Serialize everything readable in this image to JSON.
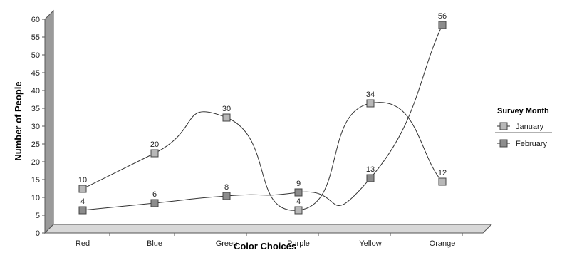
{
  "chart_data": {
    "type": "line",
    "title": "",
    "xlabel": "Color Choices",
    "ylabel": "Number of People",
    "categories": [
      "Red",
      "Blue",
      "Green",
      "Purple",
      "Yellow",
      "Orange"
    ],
    "ylim": [
      0,
      60
    ],
    "yticks": [
      0,
      5,
      10,
      15,
      20,
      25,
      30,
      35,
      40,
      45,
      50,
      55,
      60
    ],
    "grid": false,
    "legend": {
      "title": "Survey Month",
      "placement": "right"
    },
    "series": [
      {
        "name": "January",
        "values": [
          10,
          20,
          30,
          4,
          34,
          12
        ],
        "color": "#b8b8b8",
        "smooth": true
      },
      {
        "name": "February",
        "values": [
          4,
          6,
          8,
          9,
          13,
          56
        ],
        "color": "#8c8c8c",
        "smooth": true
      }
    ]
  },
  "colors": {
    "wall_shade": "#9a9a9a",
    "axis_line": "#555555",
    "marker_border": "#444444",
    "curve": "#333333"
  }
}
